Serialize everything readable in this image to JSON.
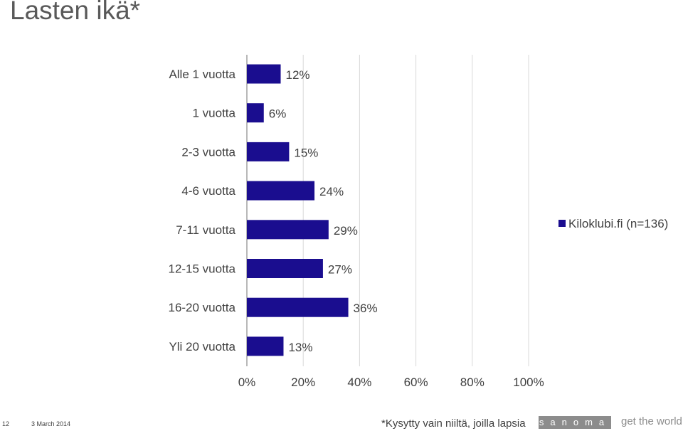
{
  "page": {
    "title": "Lasten ikä*",
    "footnote": "*Kysytty vain niiltä, joilla lapsia",
    "page_number": "12",
    "date": "3 March 2014",
    "logo_text": "sanoma",
    "tagline": "get the world"
  },
  "chart_data": {
    "type": "bar",
    "orientation": "horizontal",
    "title": "Lasten ikä*",
    "categories": [
      "Alle 1 vuotta",
      "1 vuotta",
      "2-3 vuotta",
      "4-6 vuotta",
      "7-11 vuotta",
      "12-15 vuotta",
      "16-20 vuotta",
      "Yli 20 vuotta"
    ],
    "series": [
      {
        "name": "Kiloklubi.fi (n=136)",
        "values": [
          12,
          6,
          15,
          24,
          29,
          27,
          36,
          13
        ],
        "labels": [
          "12%",
          "6%",
          "15%",
          "24%",
          "29%",
          "27%",
          "36%",
          "13%"
        ]
      }
    ],
    "xlim": [
      0,
      100
    ],
    "xticks": [
      0,
      20,
      40,
      60,
      80,
      100
    ],
    "xtick_labels": [
      "0%",
      "20%",
      "40%",
      "60%",
      "80%",
      "100%"
    ],
    "xlabel": "",
    "ylabel": "",
    "grid": true,
    "legend_position": "right",
    "bar_color": "#1a0d8f"
  }
}
